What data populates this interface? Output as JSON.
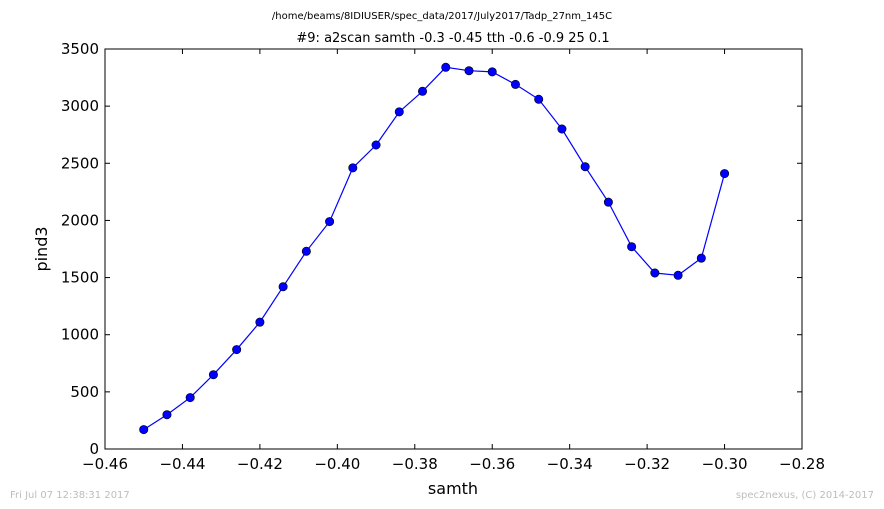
{
  "chart_data": {
    "type": "line",
    "suptitle": "/home/beams/8IDIUSER/spec_data/2017/July2017/Tadp_27nm_145C",
    "title": "#9: a2scan  samth -0.3 -0.45  tth -0.6 -0.9  25 0.1",
    "xlabel": "samth",
    "ylabel": "pind3",
    "xlim": [
      -0.46,
      -0.28
    ],
    "ylim": [
      0,
      3500
    ],
    "xticks": [
      -0.46,
      -0.44,
      -0.42,
      -0.4,
      -0.38,
      -0.36,
      -0.34,
      -0.32,
      -0.3,
      -0.28
    ],
    "xtick_labels": [
      "−0.46",
      "−0.44",
      "−0.42",
      "−0.40",
      "−0.38",
      "−0.36",
      "−0.34",
      "−0.32",
      "−0.30",
      "−0.28"
    ],
    "yticks": [
      0,
      500,
      1000,
      1500,
      2000,
      2500,
      3000,
      3500
    ],
    "ytick_labels": [
      "0",
      "500",
      "1000",
      "1500",
      "2000",
      "2500",
      "3000",
      "3500"
    ],
    "grid": false,
    "series": [
      {
        "color": "#0000ff",
        "marker": "circle",
        "x": [
          -0.45,
          -0.444,
          -0.438,
          -0.432,
          -0.426,
          -0.42,
          -0.414,
          -0.408,
          -0.402,
          -0.396,
          -0.39,
          -0.384,
          -0.378,
          -0.372,
          -0.366,
          -0.36,
          -0.354,
          -0.348,
          -0.342,
          -0.336,
          -0.33,
          -0.324,
          -0.318,
          -0.312,
          -0.306,
          -0.3
        ],
        "y": [
          170,
          300,
          450,
          650,
          870,
          1110,
          1420,
          1730,
          1990,
          2460,
          2660,
          2950,
          3130,
          3340,
          3310,
          3300,
          3190,
          3060,
          2800,
          2470,
          2160,
          1770,
          1540,
          1520,
          1670,
          2410
        ]
      }
    ]
  },
  "footer": {
    "left": "Fri Jul 07 12:38:31 2017",
    "right": "spec2nexus, (C) 2014-2017"
  }
}
